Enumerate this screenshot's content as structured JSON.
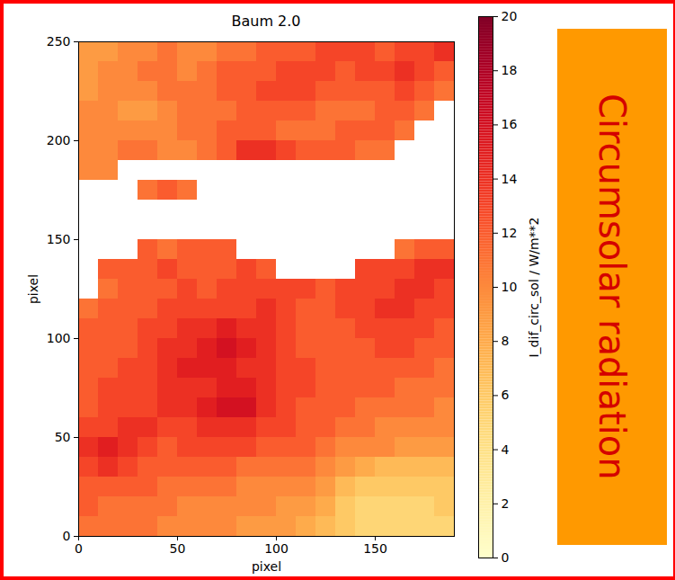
{
  "chart_data": {
    "type": "heatmap",
    "title": "Baum 2.0",
    "x_label": "pixel",
    "y_label": "pixel",
    "xlim": [
      0,
      190
    ],
    "ylim": [
      0,
      250
    ],
    "xticks": [
      0,
      50,
      100,
      150
    ],
    "yticks": [
      0,
      50,
      100,
      150,
      200,
      250
    ],
    "color": "YlOrRd",
    "annotation": "Circumsolar radiation",
    "colorbar": {
      "label": "I_dif_circ_sol / W/m**2",
      "range": [
        0,
        20
      ],
      "ticks": [
        0,
        2,
        4,
        6,
        8,
        10,
        12,
        14,
        16,
        18,
        20
      ]
    },
    "cells": {
      "x_edges": [
        0,
        10,
        20,
        30,
        40,
        50,
        60,
        70,
        80,
        90,
        100,
        110,
        120,
        130,
        140,
        150,
        160,
        170,
        180,
        190
      ],
      "y_edges": [
        0,
        10,
        20,
        30,
        40,
        50,
        60,
        70,
        80,
        90,
        100,
        110,
        120,
        130,
        140,
        150,
        160,
        170,
        180,
        190,
        200,
        210,
        220,
        230,
        240,
        250
      ],
      "values": [
        [
          11,
          11,
          11,
          11,
          10,
          10,
          10,
          10,
          9,
          9,
          9,
          8,
          7,
          6,
          5,
          5,
          5,
          5,
          5
        ],
        [
          12,
          11,
          11,
          11,
          11,
          10,
          10,
          10,
          10,
          10,
          9,
          9,
          8,
          6,
          5,
          5,
          5,
          5,
          6
        ],
        [
          12,
          12,
          12,
          12,
          11,
          11,
          11,
          11,
          10,
          10,
          10,
          10,
          9,
          7,
          6,
          6,
          6,
          6,
          6
        ],
        [
          13,
          14,
          13,
          12,
          12,
          12,
          12,
          12,
          11,
          11,
          11,
          11,
          10,
          9,
          8,
          7,
          7,
          7,
          7
        ],
        [
          14,
          15,
          14,
          13,
          12,
          13,
          13,
          13,
          13,
          12,
          12,
          12,
          11,
          10,
          10,
          10,
          9,
          9,
          9
        ],
        [
          13,
          13,
          14,
          14,
          13,
          13,
          14,
          14,
          14,
          13,
          13,
          12,
          12,
          11,
          11,
          10,
          10,
          10,
          10
        ],
        [
          12,
          13,
          13,
          13,
          14,
          14,
          15,
          16,
          16,
          14,
          13,
          12,
          12,
          12,
          11,
          11,
          11,
          11,
          10
        ],
        [
          12,
          13,
          13,
          13,
          14,
          14,
          14,
          15,
          15,
          14,
          13,
          13,
          12,
          12,
          12,
          12,
          11,
          11,
          11
        ],
        [
          12,
          12,
          13,
          13,
          14,
          15,
          15,
          15,
          14,
          14,
          13,
          13,
          12,
          12,
          12,
          12,
          12,
          12,
          11
        ],
        [
          12,
          12,
          12,
          13,
          14,
          14,
          15,
          16,
          15,
          14,
          13,
          12,
          12,
          12,
          12,
          13,
          13,
          12,
          12
        ],
        [
          12,
          12,
          12,
          13,
          13,
          14,
          14,
          15,
          14,
          14,
          13,
          12,
          12,
          12,
          13,
          13,
          13,
          13,
          12
        ],
        [
          11,
          12,
          12,
          12,
          13,
          13,
          13,
          13,
          13,
          14,
          13,
          12,
          12,
          13,
          13,
          14,
          14,
          13,
          13
        ],
        [
          null,
          11,
          12,
          12,
          12,
          13,
          12,
          13,
          13,
          13,
          13,
          13,
          12,
          13,
          13,
          13,
          14,
          14,
          13
        ],
        [
          null,
          12,
          12,
          12,
          13,
          12,
          12,
          12,
          13,
          12,
          null,
          null,
          null,
          null,
          13,
          13,
          13,
          14,
          14
        ],
        [
          null,
          null,
          null,
          12,
          11,
          12,
          12,
          12,
          null,
          null,
          null,
          null,
          null,
          null,
          null,
          null,
          11,
          12,
          12
        ],
        [
          null,
          null,
          null,
          null,
          null,
          null,
          null,
          null,
          null,
          null,
          null,
          null,
          null,
          null,
          null,
          null,
          null,
          null,
          null
        ],
        [
          null,
          null,
          null,
          null,
          null,
          null,
          null,
          null,
          null,
          null,
          null,
          null,
          null,
          null,
          null,
          null,
          null,
          null,
          null
        ],
        [
          null,
          null,
          null,
          11,
          12,
          11,
          null,
          null,
          null,
          null,
          null,
          null,
          null,
          null,
          null,
          null,
          null,
          null,
          null
        ],
        [
          10,
          10,
          null,
          null,
          null,
          null,
          null,
          null,
          null,
          null,
          null,
          null,
          null,
          null,
          null,
          null,
          null,
          null,
          null
        ],
        [
          10,
          10,
          11,
          11,
          10,
          10,
          11,
          12,
          14,
          14,
          13,
          12,
          12,
          12,
          11,
          11,
          null,
          null,
          null
        ],
        [
          10,
          10,
          10,
          10,
          10,
          11,
          11,
          12,
          12,
          12,
          11,
          11,
          11,
          12,
          12,
          12,
          11,
          null,
          null
        ],
        [
          10,
          10,
          9,
          9,
          10,
          11,
          11,
          11,
          12,
          12,
          12,
          12,
          11,
          11,
          11,
          12,
          12,
          11,
          null
        ],
        [
          9,
          10,
          10,
          10,
          11,
          11,
          11,
          12,
          12,
          13,
          13,
          13,
          12,
          12,
          12,
          12,
          13,
          12,
          11
        ],
        [
          9,
          10,
          10,
          11,
          11,
          10,
          11,
          12,
          12,
          12,
          13,
          13,
          13,
          12,
          13,
          13,
          14,
          13,
          12
        ],
        [
          9,
          9,
          10,
          10,
          11,
          10,
          10,
          11,
          11,
          12,
          12,
          12,
          13,
          13,
          13,
          12,
          13,
          13,
          14
        ]
      ]
    }
  }
}
